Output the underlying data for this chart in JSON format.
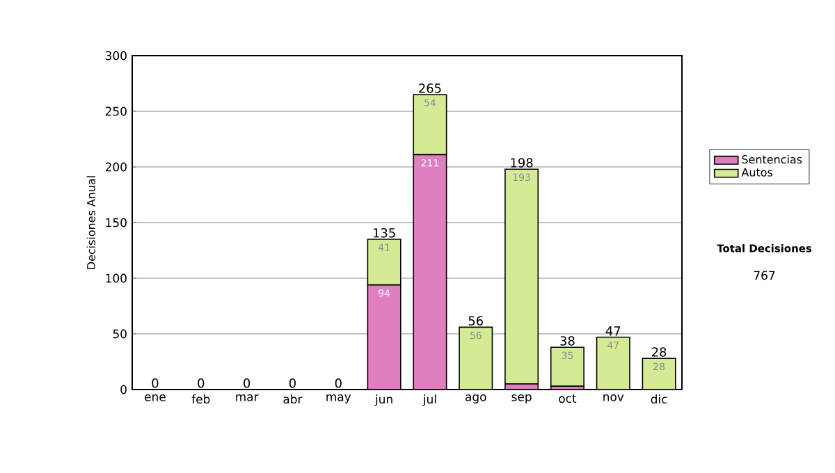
{
  "chart_data": {
    "type": "bar",
    "stacked": true,
    "ylabel": "Decisiones Anual",
    "categories": [
      "ene",
      "feb",
      "mar",
      "abr",
      "may",
      "jun",
      "jul",
      "ago",
      "sep",
      "oct",
      "nov",
      "dic"
    ],
    "series": [
      {
        "name": "Sentencias",
        "color": "#e07fc0",
        "values": [
          0,
          0,
          0,
          0,
          0,
          94,
          211,
          0,
          5,
          3,
          0,
          0
        ],
        "value_labels": [
          null,
          null,
          null,
          null,
          null,
          "94",
          "211",
          null,
          null,
          null,
          null,
          null
        ]
      },
      {
        "name": "Autos",
        "color": "#d4ea95",
        "values": [
          0,
          0,
          0,
          0,
          0,
          41,
          54,
          56,
          193,
          35,
          47,
          28
        ],
        "value_labels": [
          null,
          null,
          null,
          null,
          null,
          "41",
          "54",
          "56",
          "193",
          "35",
          "47",
          "28"
        ]
      }
    ],
    "totals": [
      "0",
      "0",
      "0",
      "0",
      "0",
      "135",
      "265",
      "56",
      "198",
      "38",
      "47",
      "28"
    ],
    "ylim": [
      0,
      300
    ],
    "yticks": [
      0,
      50,
      100,
      150,
      200,
      250,
      300
    ],
    "grid": "y",
    "legend": "right",
    "annotations": [
      "Total Decisiones",
      "767"
    ]
  }
}
